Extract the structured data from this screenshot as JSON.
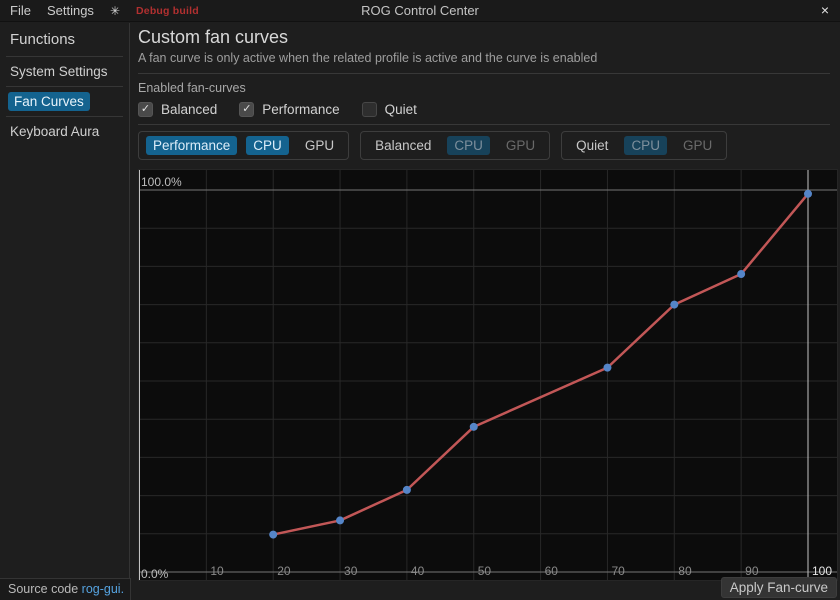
{
  "window": {
    "title": "ROG Control Center",
    "close_glyph": "×"
  },
  "menubar": {
    "items": [
      "File",
      "Settings"
    ],
    "theme_icon": "✳",
    "debug_label": "Debug build"
  },
  "sidebar": {
    "header": "Functions",
    "items": [
      {
        "label": "System Settings",
        "active": false
      },
      {
        "label": "Fan Curves",
        "active": true
      },
      {
        "label": "Keyboard Aura",
        "active": false
      }
    ]
  },
  "content": {
    "title": "Custom fan curves",
    "subtitle": "A fan curve is only active when the related profile is active and the curve is enabled",
    "enabled_section_label": "Enabled fan-curves",
    "check_glyph": "✓",
    "checkboxes": [
      {
        "label": "Balanced",
        "checked": true
      },
      {
        "label": "Performance",
        "checked": true
      },
      {
        "label": "Quiet",
        "checked": false
      }
    ],
    "profile_groups": [
      {
        "label": "Performance",
        "cpu_label": "CPU",
        "gpu_label": "GPU",
        "label_highlighted": true,
        "cpu_selected": true,
        "dimmed": false
      },
      {
        "label": "Balanced",
        "cpu_label": "CPU",
        "gpu_label": "GPU",
        "label_highlighted": false,
        "cpu_selected": true,
        "dimmed": true
      },
      {
        "label": "Quiet",
        "cpu_label": "CPU",
        "gpu_label": "GPU",
        "label_highlighted": false,
        "cpu_selected": true,
        "dimmed": true
      }
    ]
  },
  "footer": {
    "source_text": "Source code",
    "source_link": "rog-gui.",
    "apply_label": "Apply Fan-curve"
  },
  "chart_data": {
    "type": "line",
    "title": "",
    "xlabel": "",
    "ylabel": "",
    "x": [
      20,
      30,
      40,
      50,
      70,
      80,
      90,
      100
    ],
    "y": [
      9.8,
      13.5,
      21.5,
      38,
      53.5,
      70,
      78,
      99
    ],
    "xlim": [
      0,
      100
    ],
    "ylim": [
      0,
      100
    ],
    "grid_step": 10,
    "x_ticks": [
      10,
      20,
      30,
      40,
      50,
      60,
      70,
      80,
      90,
      100
    ],
    "y_edge_labels": {
      "top": "100.0%",
      "bottom": "0.0%"
    },
    "major_x_lines": [
      0,
      100
    ],
    "major_y_lines": [
      0,
      100
    ],
    "legend": [],
    "grid": true
  },
  "colors": {
    "bg_main": "#1e1e1e",
    "bg_titlebar": "#1a1a1a",
    "selection_bg": "#14638f",
    "dim_selection_bg": "#17425a",
    "link_blue": "#55a3e0",
    "debug_red": "#b13030",
    "chart_bg": "#0c0c0c",
    "curve_red": "#c25757",
    "point_blue": "#5585c8",
    "grid_minor": "#282828",
    "grid_major_h": "#767676",
    "grid_major_v": "#c4c4c4",
    "tick_label": "#8a8a8a",
    "tick_label_major": "#e5e5e5",
    "edge_label": "#bdbdbd"
  }
}
